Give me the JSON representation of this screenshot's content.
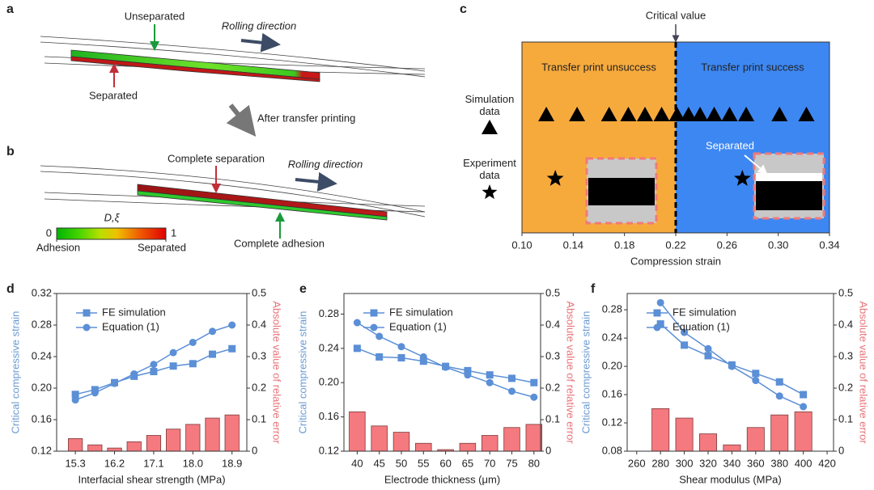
{
  "panel_labels": [
    "a",
    "b",
    "c",
    "d",
    "e",
    "f"
  ],
  "diagram_a": {
    "unseparated": "Unseparated",
    "rolling": "Rolling direction",
    "separated": "Separated"
  },
  "transition": "After transfer printing",
  "diagram_b": {
    "separation": "Complete separation",
    "rolling": "Rolling direction",
    "adhesion": "Complete adhesion"
  },
  "colorbar": {
    "title": "D,ξ",
    "ticks": [
      0,
      1
    ],
    "low": "Adhesion",
    "high": "Separated"
  },
  "chart_data": [
    {
      "type": "strip",
      "xlabel": "Compression strain",
      "xlim": [
        0.1,
        0.34
      ],
      "xticks": [
        {
          "value": 0.1,
          "label": "0.10"
        },
        0.14,
        0.18,
        0.22,
        0.26,
        {
          "value": 0.3,
          "label": "0.30"
        },
        0.34
      ],
      "critical_value": 0.22,
      "critical_label": "Critical value",
      "regions": [
        {
          "label": "Transfer print unsuccess",
          "color": "#f7aa3c"
        },
        {
          "label": "Transfer print success",
          "color": "#3d87f2"
        }
      ],
      "annotation": "Separated",
      "series": [
        {
          "name": "Simulation data",
          "marker": "triangle",
          "color": "#000000",
          "values": [
            0.119,
            0.143,
            0.168,
            0.183,
            0.196,
            0.209,
            0.221,
            0.23,
            0.239,
            0.25,
            0.262,
            0.275,
            0.301,
            0.322
          ]
        },
        {
          "name": "Experiment data",
          "marker": "star",
          "color": "#000000",
          "values": [
            0.126,
            0.272
          ]
        }
      ]
    },
    {
      "type": "line-bar",
      "xlabel": "Interfacial shear strength (MPa)",
      "ylabel": "Critical compressive strain",
      "y2label": "Absolute value of relative error",
      "x": [
        15.3,
        15.75,
        16.2,
        16.65,
        17.1,
        17.55,
        18.0,
        18.45,
        18.9
      ],
      "xlim": [
        14.87,
        19.24
      ],
      "xticks": [
        15.3,
        16.2,
        17.1,
        {
          "value": 18.0,
          "label": "18.0"
        },
        18.9
      ],
      "ylim": [
        0.12,
        0.32
      ],
      "yticks": [
        0.12,
        0.16,
        {
          "value": 0.2,
          "label": "0.20"
        },
        0.24,
        0.28,
        0.32
      ],
      "y2lim": [
        0,
        0.5
      ],
      "y2ticks": [
        0,
        0.1,
        0.2,
        0.3,
        0.4,
        0.5
      ],
      "series": [
        {
          "name": "FE simulation",
          "marker": "square",
          "color": "#5b8fd6",
          "values": [
            0.192,
            0.198,
            0.207,
            0.215,
            0.221,
            0.228,
            0.231,
            0.243,
            0.25
          ]
        },
        {
          "name": "Equation (1)",
          "marker": "circle",
          "color": "#5b8fd6",
          "values": [
            0.185,
            0.194,
            0.206,
            0.218,
            0.23,
            0.245,
            0.258,
            0.272,
            0.28
          ]
        }
      ],
      "bars": {
        "axis": "y2",
        "color": "#f47a7f",
        "values": [
          0.04,
          0.02,
          0.01,
          0.03,
          0.05,
          0.07,
          0.085,
          0.105,
          0.115
        ]
      }
    },
    {
      "type": "line-bar",
      "xlabel": "Electrode thickness (μm)",
      "ylabel": "Critical compressive strain",
      "y2label": "Absolute value of relative error",
      "x": [
        40,
        45,
        50,
        55,
        60,
        65,
        70,
        75,
        80
      ],
      "xlim": [
        37,
        81.5
      ],
      "xticks": [
        40,
        45,
        50,
        55,
        60,
        65,
        70,
        75,
        80
      ],
      "ylim": [
        0.12,
        0.304
      ],
      "yticks": [
        0.12,
        0.16,
        {
          "value": 0.2,
          "label": "0.20"
        },
        0.24,
        0.28
      ],
      "y2lim": [
        0,
        0.5
      ],
      "y2ticks": [
        0,
        0.1,
        0.2,
        0.3,
        0.4,
        0.5
      ],
      "series": [
        {
          "name": "FE simulation",
          "marker": "square",
          "color": "#5b8fd6",
          "values": [
            0.24,
            0.23,
            0.229,
            0.225,
            0.219,
            0.214,
            0.209,
            0.205,
            0.2
          ]
        },
        {
          "name": "Equation (1)",
          "marker": "circle",
          "color": "#5b8fd6",
          "values": [
            0.27,
            0.254,
            0.242,
            0.23,
            0.218,
            0.209,
            0.2,
            0.19,
            0.183
          ]
        }
      ],
      "bars": {
        "axis": "y2",
        "color": "#f47a7f",
        "values": [
          0.125,
          0.08,
          0.06,
          0.025,
          0.005,
          0.025,
          0.05,
          0.075,
          0.085
        ]
      }
    },
    {
      "type": "line-bar",
      "xlabel": "Shear modulus (MPa)",
      "ylabel": "Critical compressive strain",
      "y2label": "Absolute value of relative error",
      "x": [
        280,
        300,
        320,
        340,
        360,
        380,
        400
      ],
      "xlim": [
        252,
        425.4
      ],
      "xticks": [
        260,
        280,
        300,
        320,
        340,
        360,
        380,
        400,
        420
      ],
      "ylim": [
        0.08,
        0.303
      ],
      "yticks": [
        0.08,
        0.12,
        0.16,
        {
          "value": 0.2,
          "label": "0.20"
        },
        0.24,
        0.28
      ],
      "y2lim": [
        0,
        0.5
      ],
      "y2ticks": [
        0,
        0.1,
        0.2,
        0.3,
        0.4,
        0.5
      ],
      "series": [
        {
          "name": "FE simulation",
          "marker": "square",
          "color": "#5b8fd6",
          "values": [
            0.26,
            0.23,
            0.215,
            0.202,
            0.19,
            0.178,
            0.16
          ]
        },
        {
          "name": "Equation (1)",
          "marker": "circle",
          "color": "#5b8fd6",
          "values": [
            0.29,
            0.248,
            0.225,
            0.2,
            0.18,
            0.158,
            0.143
          ]
        }
      ],
      "bars": {
        "axis": "y2",
        "color": "#f47a7f",
        "values": [
          0.135,
          0.105,
          0.055,
          0.02,
          0.075,
          0.115,
          0.125
        ]
      }
    }
  ]
}
